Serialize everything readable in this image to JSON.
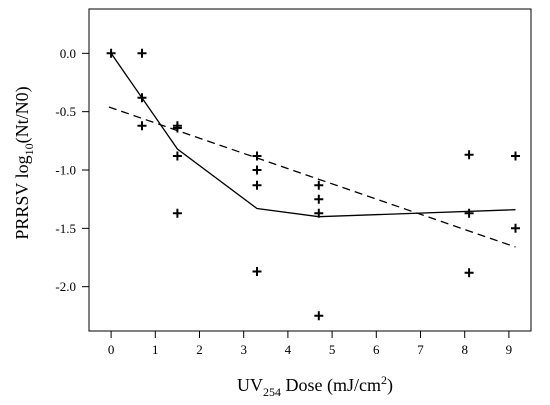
{
  "chart_data": {
    "type": "scatter",
    "xlabel": {
      "pre": "UV",
      "sub": "254",
      "mid": " Dose (mJ/cm",
      "sup": "2",
      "post": ")"
    },
    "ylabel": {
      "pre": "PRRSV log",
      "sub": "10",
      "post": "(Nt/N0)"
    },
    "xlim": [
      -0.5,
      9.5
    ],
    "ylim": [
      -2.38,
      0.38
    ],
    "x_ticks": [
      "0",
      "1",
      "2",
      "3",
      "4",
      "5",
      "6",
      "7",
      "8",
      "9"
    ],
    "x_tick_values": [
      0,
      1,
      2,
      3,
      4,
      5,
      6,
      7,
      8,
      9
    ],
    "y_ticks": [
      "0.0",
      "-0.5",
      "-1.0",
      "-1.5",
      "-2.0"
    ],
    "y_tick_values": [
      0,
      -0.5,
      -1.0,
      -1.5,
      -2.0
    ],
    "grid": false,
    "legend": "none",
    "points": [
      {
        "x": 0.0,
        "y": 0.0
      },
      {
        "x": 0.7,
        "y": 0.0
      },
      {
        "x": 0.7,
        "y": -0.38
      },
      {
        "x": 0.7,
        "y": -0.62
      },
      {
        "x": 1.5,
        "y": -0.62
      },
      {
        "x": 1.5,
        "y": -0.64
      },
      {
        "x": 1.5,
        "y": -0.88
      },
      {
        "x": 1.5,
        "y": -1.37
      },
      {
        "x": 3.3,
        "y": -0.88
      },
      {
        "x": 3.3,
        "y": -1.0
      },
      {
        "x": 3.3,
        "y": -1.13
      },
      {
        "x": 3.3,
        "y": -1.87
      },
      {
        "x": 4.7,
        "y": -1.13
      },
      {
        "x": 4.7,
        "y": -1.25
      },
      {
        "x": 4.7,
        "y": -1.37
      },
      {
        "x": 4.7,
        "y": -2.25
      },
      {
        "x": 8.1,
        "y": -0.87
      },
      {
        "x": 8.1,
        "y": -1.37
      },
      {
        "x": 8.1,
        "y": -1.88
      },
      {
        "x": 9.15,
        "y": -0.88
      },
      {
        "x": 9.15,
        "y": -1.5
      }
    ],
    "fit_lines": [
      {
        "style": "solid",
        "x": [
          0,
          1.5,
          3.3,
          4.7,
          9.15
        ],
        "y": [
          0,
          -0.82,
          -1.33,
          -1.4,
          -1.34
        ]
      },
      {
        "style": "dashed",
        "x": [
          -0.05,
          9.15
        ],
        "y": [
          -0.46,
          -1.66
        ]
      }
    ]
  }
}
